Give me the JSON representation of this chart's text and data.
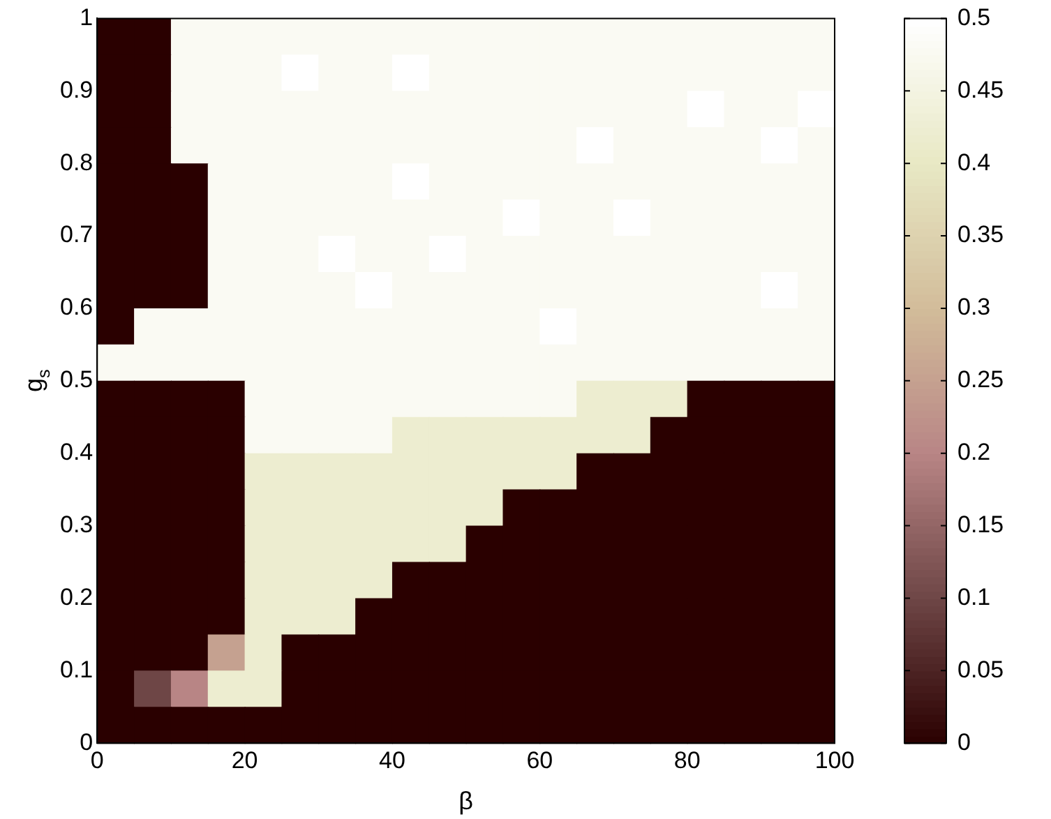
{
  "chart_data": {
    "type": "heatmap",
    "xlabel": "β",
    "ylabel": "g$_{s}$",
    "x": [
      2.5,
      7.5,
      12.5,
      17.5,
      22.5,
      27.5,
      32.5,
      37.5,
      42.5,
      47.5,
      52.5,
      57.5,
      62.5,
      67.5,
      72.5,
      77.5,
      82.5,
      87.5,
      92.5,
      97.5
    ],
    "y": [
      0.975,
      0.925,
      0.875,
      0.825,
      0.775,
      0.725,
      0.675,
      0.625,
      0.575,
      0.525,
      0.475,
      0.425,
      0.375,
      0.325,
      0.275,
      0.225,
      0.175,
      0.125,
      0.075,
      0.025
    ],
    "xlim": [
      0,
      100
    ],
    "xticks": [
      0,
      20,
      40,
      60,
      80,
      100
    ],
    "ylim": [
      0,
      1
    ],
    "yticks": [
      0,
      0.1,
      0.2,
      0.3,
      0.4,
      0.5,
      0.6,
      0.7,
      0.8,
      0.9,
      1
    ],
    "clim": [
      0,
      0.5
    ],
    "cticks": [
      0,
      0.05,
      0.1,
      0.15,
      0.2,
      0.25,
      0.3,
      0.35,
      0.4,
      0.45,
      0.5
    ],
    "colors": [
      "#2a0000",
      "#6e4646",
      "#b88585",
      "#d2bc9a",
      "#e8e8c4",
      "#ffffff"
    ],
    "cells": [
      [
        0,
        0,
        0.48,
        0.48,
        0.48,
        0.48,
        0.48,
        0.48,
        0.48,
        0.48,
        0.48,
        0.48,
        0.48,
        0.48,
        0.48,
        0.48,
        0.48,
        0.48,
        0.48,
        0.48
      ],
      [
        0,
        0,
        0.48,
        0.48,
        0.48,
        0.5,
        0.48,
        0.48,
        0.5,
        0.48,
        0.48,
        0.48,
        0.48,
        0.48,
        0.48,
        0.48,
        0.48,
        0.48,
        0.48,
        0.48
      ],
      [
        0,
        0,
        0.48,
        0.48,
        0.48,
        0.48,
        0.48,
        0.48,
        0.48,
        0.48,
        0.48,
        0.48,
        0.48,
        0.48,
        0.48,
        0.48,
        0.5,
        0.48,
        0.48,
        0.5
      ],
      [
        0,
        0,
        0.48,
        0.48,
        0.48,
        0.48,
        0.48,
        0.48,
        0.48,
        0.48,
        0.48,
        0.48,
        0.48,
        0.5,
        0.48,
        0.48,
        0.48,
        0.48,
        0.5,
        0.48
      ],
      [
        0,
        0,
        0,
        0.48,
        0.48,
        0.48,
        0.48,
        0.48,
        0.5,
        0.48,
        0.48,
        0.48,
        0.48,
        0.48,
        0.48,
        0.48,
        0.48,
        0.48,
        0.48,
        0.48
      ],
      [
        0,
        0,
        0,
        0.48,
        0.48,
        0.48,
        0.48,
        0.48,
        0.48,
        0.48,
        0.48,
        0.5,
        0.48,
        0.48,
        0.5,
        0.48,
        0.48,
        0.48,
        0.48,
        0.48
      ],
      [
        0,
        0,
        0,
        0.48,
        0.48,
        0.48,
        0.5,
        0.48,
        0.48,
        0.5,
        0.48,
        0.48,
        0.48,
        0.48,
        0.48,
        0.48,
        0.48,
        0.48,
        0.48,
        0.48
      ],
      [
        0,
        0,
        0,
        0.48,
        0.48,
        0.48,
        0.48,
        0.5,
        0.48,
        0.48,
        0.48,
        0.48,
        0.48,
        0.48,
        0.48,
        0.48,
        0.48,
        0.48,
        0.5,
        0.48
      ],
      [
        0,
        0.48,
        0.48,
        0.48,
        0.48,
        0.48,
        0.48,
        0.48,
        0.48,
        0.48,
        0.48,
        0.48,
        0.5,
        0.48,
        0.48,
        0.48,
        0.48,
        0.48,
        0.48,
        0.48
      ],
      [
        0.48,
        0.48,
        0.48,
        0.48,
        0.48,
        0.48,
        0.48,
        0.48,
        0.48,
        0.48,
        0.48,
        0.48,
        0.48,
        0.48,
        0.48,
        0.48,
        0.48,
        0.48,
        0.48,
        0.48
      ],
      [
        0,
        0,
        0,
        0,
        0.48,
        0.48,
        0.48,
        0.48,
        0.48,
        0.48,
        0.48,
        0.48,
        0.48,
        0.42,
        0.42,
        0.42,
        0,
        0,
        0,
        0
      ],
      [
        0,
        0,
        0,
        0,
        0.48,
        0.48,
        0.48,
        0.48,
        0.42,
        0.42,
        0.42,
        0.42,
        0.42,
        0.42,
        0.42,
        0,
        0,
        0,
        0,
        0
      ],
      [
        0,
        0,
        0,
        0,
        0.42,
        0.42,
        0.42,
        0.42,
        0.42,
        0.42,
        0.42,
        0.42,
        0.42,
        0,
        0,
        0,
        0,
        0,
        0,
        0
      ],
      [
        0,
        0,
        0,
        0,
        0.42,
        0.42,
        0.42,
        0.42,
        0.42,
        0.42,
        0.42,
        0,
        0,
        0,
        0,
        0,
        0,
        0,
        0,
        0
      ],
      [
        0,
        0,
        0,
        0,
        0.42,
        0.42,
        0.42,
        0.42,
        0.42,
        0.42,
        0,
        0,
        0,
        0,
        0,
        0,
        0,
        0,
        0,
        0
      ],
      [
        0,
        0,
        0,
        0,
        0.42,
        0.42,
        0.42,
        0.42,
        0,
        0,
        0,
        0,
        0,
        0,
        0,
        0,
        0,
        0,
        0,
        0
      ],
      [
        0,
        0,
        0,
        0,
        0.42,
        0.42,
        0.42,
        0,
        0,
        0,
        0,
        0,
        0,
        0,
        0,
        0,
        0,
        0,
        0,
        0
      ],
      [
        0,
        0,
        0,
        0.25,
        0.42,
        0,
        0,
        0,
        0,
        0,
        0,
        0,
        0,
        0,
        0,
        0,
        0,
        0,
        0,
        0
      ],
      [
        0,
        0.1,
        0.2,
        0.42,
        0.42,
        0,
        0,
        0,
        0,
        0,
        0,
        0,
        0,
        0,
        0,
        0,
        0,
        0,
        0,
        0
      ],
      [
        0,
        0,
        0,
        0,
        0,
        0,
        0,
        0,
        0,
        0,
        0,
        0,
        0,
        0,
        0,
        0,
        0,
        0,
        0,
        0
      ]
    ]
  }
}
